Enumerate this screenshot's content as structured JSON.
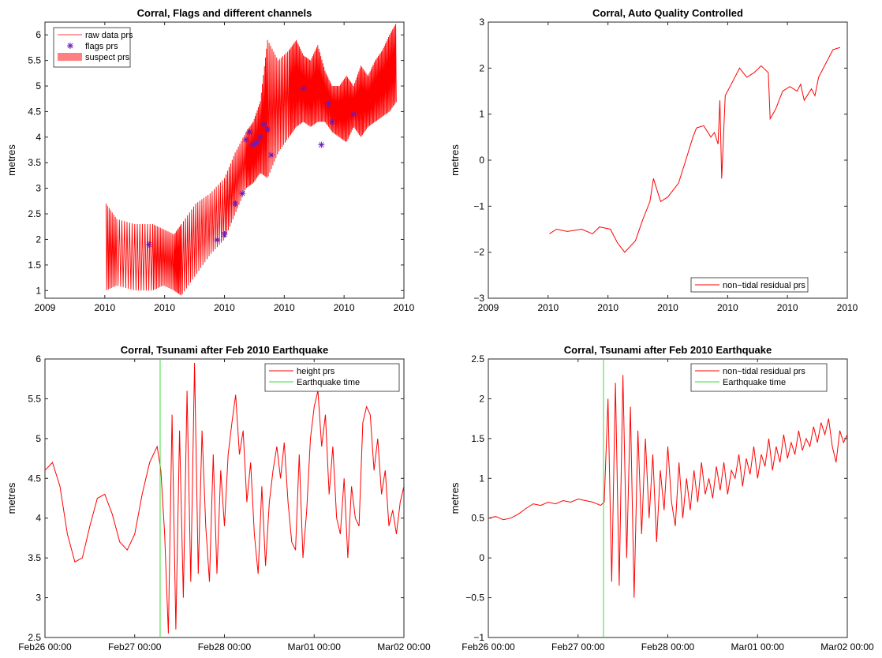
{
  "colors": {
    "data_red": "#ff0000",
    "suspect_fill": "#ff8080",
    "flag_purple": "#6a1bb8",
    "quake_green": "#3cdc3c"
  },
  "chart_data": [
    {
      "id": "flags",
      "type": "line",
      "title": "Corral, Flags and different channels",
      "xlabel": "",
      "ylabel": "metres",
      "xlim": [
        0,
        1
      ],
      "ylim": [
        0.85,
        6.25
      ],
      "x_ticks": [
        0,
        0.1667,
        0.3333,
        0.5,
        0.6667,
        0.8333,
        1
      ],
      "x_tick_labels": [
        "2009",
        "2010",
        "2010",
        "2010",
        "2010",
        "2010",
        "2010"
      ],
      "y_ticks": [
        1,
        1.5,
        2,
        2.5,
        3,
        3.5,
        4,
        4.5,
        5,
        5.5,
        6
      ],
      "y_tick_labels": [
        "1",
        "1.5",
        "2",
        "2.5",
        "3",
        "3.5",
        "4",
        "4.5",
        "5",
        "5.5",
        "6"
      ],
      "legend_position": "top-left",
      "series": [
        {
          "name": "raw data prs",
          "kind": "band",
          "color": "#ff0000",
          "x": [
            0.17,
            0.2,
            0.25,
            0.3,
            0.33,
            0.36,
            0.38,
            0.42,
            0.46,
            0.5,
            0.53,
            0.56,
            0.58,
            0.6,
            0.62,
            0.65,
            0.68,
            0.7,
            0.72,
            0.74,
            0.76,
            0.78,
            0.8,
            0.82,
            0.84,
            0.86,
            0.88,
            0.9,
            0.92,
            0.94,
            0.96,
            0.98
          ],
          "low": [
            1.0,
            1.1,
            1.0,
            1.0,
            1.1,
            1.0,
            0.9,
            1.3,
            1.7,
            2.0,
            2.5,
            3.0,
            3.1,
            3.3,
            3.2,
            3.7,
            4.0,
            4.2,
            4.3,
            4.2,
            4.3,
            4.3,
            4.1,
            4.0,
            3.9,
            4.2,
            4.0,
            4.2,
            4.3,
            4.4,
            4.5,
            4.7
          ],
          "high": [
            2.7,
            2.4,
            2.3,
            2.3,
            2.2,
            2.1,
            2.3,
            2.7,
            2.9,
            3.2,
            3.7,
            4.1,
            4.3,
            4.7,
            5.9,
            5.5,
            5.7,
            5.9,
            5.6,
            5.5,
            5.8,
            5.3,
            5.0,
            5.0,
            5.2,
            5.0,
            5.4,
            5.2,
            5.5,
            5.7,
            6.0,
            6.25
          ]
        },
        {
          "name": "flags prs",
          "kind": "markers",
          "color": "#6a1bb8",
          "x": [
            0.29,
            0.48,
            0.5,
            0.53,
            0.55,
            0.56,
            0.57,
            0.58,
            0.59,
            0.6,
            0.61,
            0.62,
            0.63,
            0.72,
            0.77,
            0.79,
            0.8,
            0.86
          ],
          "y": [
            1.9,
            1.99,
            2.1,
            2.7,
            2.9,
            3.95,
            4.1,
            3.85,
            3.9,
            4.0,
            4.25,
            4.15,
            3.65,
            4.95,
            3.85,
            4.65,
            4.3,
            4.45
          ]
        },
        {
          "name": "suspect prs",
          "kind": "legend-only",
          "color": "#ff8080"
        }
      ]
    },
    {
      "id": "qc",
      "type": "line",
      "title": "Corral, Auto Quality Controlled",
      "xlabel": "",
      "ylabel": "metres",
      "xlim": [
        0,
        1
      ],
      "ylim": [
        -3,
        3
      ],
      "x_ticks": [
        0,
        0.1667,
        0.3333,
        0.5,
        0.6667,
        0.8333,
        1
      ],
      "x_tick_labels": [
        "2009",
        "2010",
        "2010",
        "2010",
        "2010",
        "2010",
        "2010"
      ],
      "y_ticks": [
        -3,
        -2,
        -1,
        0,
        1,
        2,
        3
      ],
      "y_tick_labels": [
        "−3",
        "−2",
        "−1",
        "0",
        "1",
        "2",
        "3"
      ],
      "legend_position": "bottom-right",
      "series": [
        {
          "name": "non−tidal residual prs",
          "kind": "line",
          "color": "#ff0000",
          "x": [
            0.17,
            0.19,
            0.22,
            0.26,
            0.29,
            0.31,
            0.34,
            0.36,
            0.38,
            0.41,
            0.43,
            0.45,
            0.46,
            0.48,
            0.5,
            0.53,
            0.55,
            0.57,
            0.58,
            0.6,
            0.62,
            0.63,
            0.64,
            0.645,
            0.65,
            0.66,
            0.68,
            0.7,
            0.72,
            0.74,
            0.76,
            0.78,
            0.785,
            0.8,
            0.82,
            0.84,
            0.86,
            0.87,
            0.88,
            0.9,
            0.91,
            0.92,
            0.94,
            0.96,
            0.98
          ],
          "y": [
            -1.6,
            -1.5,
            -1.55,
            -1.5,
            -1.6,
            -1.45,
            -1.5,
            -1.8,
            -2.0,
            -1.75,
            -1.3,
            -0.9,
            -0.4,
            -0.9,
            -0.8,
            -0.5,
            0.0,
            0.5,
            0.7,
            0.75,
            0.5,
            0.6,
            0.35,
            1.3,
            -0.4,
            1.4,
            1.7,
            2.0,
            1.8,
            1.9,
            2.05,
            1.9,
            0.9,
            1.1,
            1.5,
            1.6,
            1.5,
            1.65,
            1.3,
            1.55,
            1.4,
            1.8,
            2.1,
            2.4,
            2.45
          ]
        }
      ]
    },
    {
      "id": "tsunami-height",
      "type": "line",
      "title": "Corral, Tsunami after Feb 2010 Earthquake",
      "xlabel": "",
      "ylabel": "metres",
      "xlim": [
        0,
        96
      ],
      "ylim": [
        2.5,
        6
      ],
      "x_ticks": [
        0,
        24,
        48,
        72,
        96
      ],
      "x_tick_labels": [
        "Feb26 00:00",
        "Feb27 00:00",
        "Feb28 00:00",
        "Mar01 00:00",
        "Mar02 00:00"
      ],
      "y_ticks": [
        2.5,
        3,
        3.5,
        4,
        4.5,
        5,
        5.5,
        6
      ],
      "y_tick_labels": [
        "2.5",
        "3",
        "3.5",
        "4",
        "4.5",
        "5",
        "5.5",
        "6"
      ],
      "legend_position": "top-right",
      "vline_x": 30.8,
      "series": [
        {
          "name": "height prs",
          "kind": "line",
          "color": "#ff0000",
          "x": [
            0,
            2,
            4,
            6,
            8,
            10,
            12,
            14,
            16,
            18,
            20,
            22,
            24,
            26,
            28,
            30,
            31,
            32,
            33,
            34,
            35,
            36,
            37,
            38,
            39,
            40,
            41,
            42,
            43,
            44,
            45,
            46,
            47,
            48,
            49,
            50,
            51,
            52,
            53,
            54,
            55,
            56,
            57,
            58,
            59,
            60,
            61,
            62,
            63,
            64,
            65,
            66,
            67,
            68,
            69,
            70,
            71,
            72,
            73,
            74,
            75,
            76,
            77,
            78,
            79,
            80,
            81,
            82,
            83,
            84,
            85,
            86,
            87,
            88,
            89,
            90,
            91,
            92,
            93,
            94,
            95,
            96
          ],
          "y": [
            4.6,
            4.7,
            4.4,
            3.8,
            3.45,
            3.5,
            3.9,
            4.25,
            4.3,
            4.05,
            3.7,
            3.6,
            3.8,
            4.3,
            4.7,
            4.9,
            4.6,
            3.8,
            2.55,
            5.3,
            2.6,
            5.1,
            3.0,
            5.6,
            3.2,
            5.95,
            3.3,
            5.1,
            3.9,
            3.2,
            4.8,
            3.3,
            4.6,
            3.9,
            4.8,
            5.2,
            5.55,
            4.8,
            5.1,
            4.2,
            4.7,
            3.8,
            3.3,
            4.4,
            3.4,
            4.2,
            4.6,
            4.9,
            4.5,
            4.95,
            4.2,
            3.7,
            3.6,
            4.8,
            3.5,
            4.1,
            5.0,
            5.4,
            5.6,
            4.9,
            5.3,
            4.3,
            4.9,
            4.0,
            3.8,
            4.5,
            3.5,
            4.4,
            4.0,
            3.9,
            5.2,
            5.4,
            5.3,
            4.6,
            5.0,
            4.3,
            4.6,
            3.9,
            4.1,
            3.8,
            4.2,
            4.4
          ]
        },
        {
          "name": "Earthquake time",
          "kind": "vline",
          "color": "#3cdc3c"
        }
      ]
    },
    {
      "id": "tsunami-residual",
      "type": "line",
      "title": "Corral, Tsunami after Feb 2010 Earthquake",
      "xlabel": "",
      "ylabel": "metres",
      "xlim": [
        0,
        96
      ],
      "ylim": [
        -1,
        2.5
      ],
      "x_ticks": [
        0,
        24,
        48,
        72,
        96
      ],
      "x_tick_labels": [
        "Feb26 00:00",
        "Feb27 00:00",
        "Feb28 00:00",
        "Mar01 00:00",
        "Mar02 00:00"
      ],
      "y_ticks": [
        -1,
        -0.5,
        0,
        0.5,
        1,
        1.5,
        2,
        2.5
      ],
      "y_tick_labels": [
        "−1",
        "−0.5",
        "0",
        "0.5",
        "1",
        "1.5",
        "2",
        "2.5"
      ],
      "legend_position": "top-right",
      "vline_x": 30.8,
      "series": [
        {
          "name": "non−tidal residual prs",
          "kind": "line",
          "color": "#ff0000",
          "x": [
            0,
            2,
            4,
            6,
            8,
            10,
            12,
            14,
            16,
            18,
            20,
            22,
            24,
            26,
            28,
            30,
            31,
            32,
            33,
            34,
            35,
            36,
            37,
            38,
            39,
            40,
            41,
            42,
            43,
            44,
            45,
            46,
            47,
            48,
            49,
            50,
            51,
            52,
            53,
            54,
            55,
            56,
            57,
            58,
            59,
            60,
            61,
            62,
            63,
            64,
            65,
            66,
            67,
            68,
            69,
            70,
            71,
            72,
            73,
            74,
            75,
            76,
            77,
            78,
            79,
            80,
            81,
            82,
            83,
            84,
            85,
            86,
            87,
            88,
            89,
            90,
            91,
            92,
            93,
            94,
            95,
            96
          ],
          "y": [
            0.5,
            0.52,
            0.48,
            0.5,
            0.55,
            0.62,
            0.68,
            0.66,
            0.7,
            0.68,
            0.72,
            0.7,
            0.74,
            0.72,
            0.7,
            0.66,
            0.7,
            2.0,
            -0.3,
            2.2,
            -0.35,
            2.3,
            0.0,
            1.9,
            -0.5,
            1.6,
            0.3,
            1.5,
            0.5,
            1.3,
            0.2,
            1.1,
            0.6,
            1.4,
            0.7,
            0.4,
            1.2,
            0.5,
            1.0,
            0.6,
            1.1,
            0.7,
            1.2,
            0.8,
            1.0,
            0.75,
            1.15,
            0.85,
            1.2,
            0.8,
            1.1,
            1.0,
            1.3,
            0.9,
            1.25,
            1.05,
            1.4,
            1.0,
            1.3,
            1.15,
            1.5,
            1.1,
            1.4,
            1.2,
            1.55,
            1.25,
            1.45,
            1.3,
            1.6,
            1.35,
            1.5,
            1.4,
            1.65,
            1.45,
            1.7,
            1.55,
            1.75,
            1.4,
            1.2,
            1.6,
            1.45,
            1.55
          ]
        },
        {
          "name": "Earthquake time",
          "kind": "vline",
          "color": "#3cdc3c"
        }
      ]
    }
  ]
}
